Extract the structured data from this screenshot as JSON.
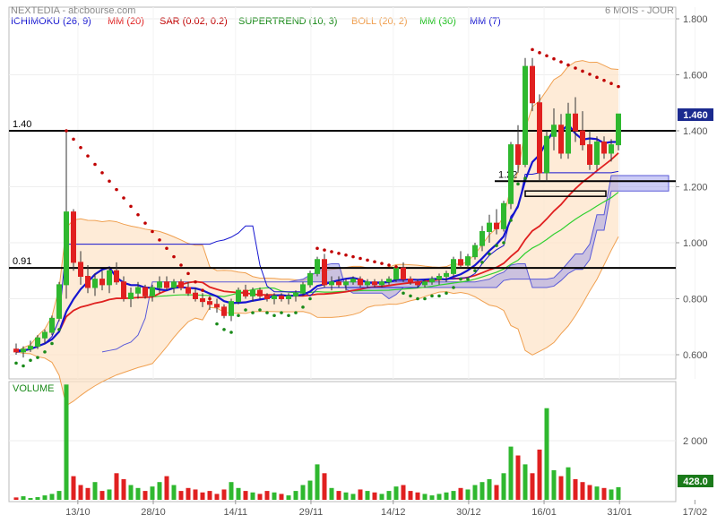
{
  "header": {
    "title": "NEXTEDIA - abcbourse.com",
    "period": "6 MOIS - JOUR"
  },
  "legend": [
    {
      "label": "ICHIMOKU (26, 9)",
      "color": "#1515d0"
    },
    {
      "label": "MM (20)",
      "color": "#e02020"
    },
    {
      "label": "SAR (0.02, 0.2)",
      "color": "#c00000"
    },
    {
      "label": "SUPERTREND (10, 3)",
      "color": "#1a8a1a"
    },
    {
      "label": "BOLL (20, 2)",
      "color": "#f0a050"
    },
    {
      "label": "MM (30)",
      "color": "#20c020"
    },
    {
      "label": "MM (7)",
      "color": "#1515d0"
    }
  ],
  "price_axis": {
    "ticks": [
      "1.800",
      "1.600",
      "1.400",
      "1.200",
      "1.000",
      "0.800",
      "0.600"
    ],
    "last_label": "1.460"
  },
  "volume_axis": {
    "ticks": [
      "2 000"
    ],
    "last_label": "428.0",
    "title": "VOLUME"
  },
  "x_axis": {
    "ticks": [
      "13/10",
      "28/10",
      "14/11",
      "29/11",
      "14/12",
      "30/12",
      "16/01",
      "31/01",
      "17/02"
    ]
  },
  "levels": [
    {
      "label": "1.40",
      "value": 1.4
    },
    {
      "label": "0.91",
      "value": 0.91
    },
    {
      "label": "1.22",
      "value": 1.22
    }
  ],
  "chart_data": {
    "type": "candlestick",
    "title": "NEXTEDIA",
    "ylim": [
      0.55,
      1.85
    ],
    "series_note": "daily OHLC, approximate",
    "candles": [
      [
        0.62,
        0.64,
        0.6,
        0.61
      ],
      [
        0.61,
        0.63,
        0.59,
        0.62
      ],
      [
        0.62,
        0.65,
        0.61,
        0.63
      ],
      [
        0.63,
        0.67,
        0.62,
        0.66
      ],
      [
        0.66,
        0.69,
        0.64,
        0.68
      ],
      [
        0.68,
        0.74,
        0.67,
        0.73
      ],
      [
        0.73,
        0.86,
        0.72,
        0.85
      ],
      [
        0.85,
        1.4,
        0.8,
        1.11
      ],
      [
        1.11,
        1.12,
        0.9,
        0.93
      ],
      [
        0.93,
        0.97,
        0.85,
        0.88
      ],
      [
        0.88,
        0.92,
        0.82,
        0.84
      ],
      [
        0.84,
        0.89,
        0.81,
        0.87
      ],
      [
        0.87,
        0.9,
        0.83,
        0.85
      ],
      [
        0.85,
        0.91,
        0.82,
        0.9
      ],
      [
        0.9,
        0.93,
        0.85,
        0.86
      ],
      [
        0.86,
        0.88,
        0.79,
        0.8
      ],
      [
        0.8,
        0.84,
        0.77,
        0.82
      ],
      [
        0.82,
        0.86,
        0.8,
        0.84
      ],
      [
        0.84,
        0.85,
        0.8,
        0.81
      ],
      [
        0.81,
        0.85,
        0.79,
        0.84
      ],
      [
        0.84,
        0.88,
        0.82,
        0.86
      ],
      [
        0.86,
        0.88,
        0.83,
        0.84
      ],
      [
        0.84,
        0.87,
        0.82,
        0.86
      ],
      [
        0.86,
        0.87,
        0.83,
        0.84
      ],
      [
        0.84,
        0.86,
        0.81,
        0.82
      ],
      [
        0.82,
        0.84,
        0.79,
        0.8
      ],
      [
        0.8,
        0.82,
        0.77,
        0.79
      ],
      [
        0.79,
        0.81,
        0.76,
        0.78
      ],
      [
        0.78,
        0.8,
        0.75,
        0.77
      ],
      [
        0.77,
        0.78,
        0.73,
        0.74
      ],
      [
        0.74,
        0.8,
        0.72,
        0.79
      ],
      [
        0.79,
        0.84,
        0.78,
        0.83
      ],
      [
        0.83,
        0.85,
        0.8,
        0.81
      ],
      [
        0.81,
        0.84,
        0.79,
        0.83
      ],
      [
        0.83,
        0.84,
        0.8,
        0.81
      ],
      [
        0.81,
        0.82,
        0.79,
        0.8
      ],
      [
        0.8,
        0.82,
        0.78,
        0.81
      ],
      [
        0.81,
        0.82,
        0.79,
        0.8
      ],
      [
        0.8,
        0.82,
        0.78,
        0.81
      ],
      [
        0.81,
        0.83,
        0.79,
        0.82
      ],
      [
        0.82,
        0.86,
        0.81,
        0.85
      ],
      [
        0.85,
        0.9,
        0.84,
        0.89
      ],
      [
        0.89,
        0.95,
        0.88,
        0.94
      ],
      [
        0.94,
        0.96,
        0.84,
        0.85
      ],
      [
        0.85,
        0.88,
        0.83,
        0.86
      ],
      [
        0.86,
        0.88,
        0.84,
        0.85
      ],
      [
        0.85,
        0.87,
        0.83,
        0.86
      ],
      [
        0.86,
        0.88,
        0.85,
        0.87
      ],
      [
        0.87,
        0.88,
        0.84,
        0.85
      ],
      [
        0.85,
        0.87,
        0.84,
        0.86
      ],
      [
        0.86,
        0.87,
        0.84,
        0.85
      ],
      [
        0.85,
        0.87,
        0.84,
        0.86
      ],
      [
        0.86,
        0.88,
        0.85,
        0.87
      ],
      [
        0.87,
        0.92,
        0.86,
        0.91
      ],
      [
        0.91,
        0.93,
        0.86,
        0.87
      ],
      [
        0.87,
        0.88,
        0.85,
        0.86
      ],
      [
        0.86,
        0.87,
        0.84,
        0.85
      ],
      [
        0.85,
        0.87,
        0.84,
        0.86
      ],
      [
        0.86,
        0.88,
        0.85,
        0.87
      ],
      [
        0.87,
        0.89,
        0.85,
        0.88
      ],
      [
        0.88,
        0.9,
        0.86,
        0.89
      ],
      [
        0.89,
        0.95,
        0.88,
        0.94
      ],
      [
        0.94,
        0.97,
        0.91,
        0.92
      ],
      [
        0.92,
        0.96,
        0.91,
        0.95
      ],
      [
        0.95,
        1.0,
        0.94,
        0.99
      ],
      [
        0.99,
        1.06,
        0.97,
        1.04
      ],
      [
        1.04,
        1.1,
        1.0,
        1.07
      ],
      [
        1.07,
        1.12,
        1.03,
        1.05
      ],
      [
        1.05,
        1.15,
        1.04,
        1.14
      ],
      [
        1.14,
        1.36,
        1.12,
        1.35
      ],
      [
        1.35,
        1.42,
        1.25,
        1.28
      ],
      [
        1.28,
        1.66,
        1.27,
        1.63
      ],
      [
        1.63,
        1.66,
        1.47,
        1.5
      ],
      [
        1.5,
        1.53,
        1.22,
        1.25
      ],
      [
        1.25,
        1.4,
        1.22,
        1.38
      ],
      [
        1.38,
        1.48,
        1.33,
        1.42
      ],
      [
        1.42,
        1.46,
        1.3,
        1.32
      ],
      [
        1.32,
        1.5,
        1.3,
        1.46
      ],
      [
        1.46,
        1.52,
        1.36,
        1.4
      ],
      [
        1.4,
        1.47,
        1.33,
        1.35
      ],
      [
        1.35,
        1.4,
        1.26,
        1.28
      ],
      [
        1.28,
        1.38,
        1.26,
        1.36
      ],
      [
        1.36,
        1.38,
        1.3,
        1.32
      ],
      [
        1.32,
        1.37,
        1.29,
        1.35
      ],
      [
        1.35,
        1.46,
        1.33,
        1.46
      ]
    ],
    "volume": [
      80,
      120,
      60,
      90,
      150,
      200,
      300,
      3900,
      800,
      500,
      400,
      600,
      300,
      350,
      900,
      700,
      500,
      400,
      300,
      450,
      600,
      800,
      500,
      300,
      400,
      350,
      250,
      300,
      200,
      350,
      600,
      400,
      300,
      250,
      200,
      300,
      250,
      200,
      150,
      300,
      500,
      650,
      1200,
      900,
      400,
      300,
      250,
      200,
      350,
      300,
      250,
      200,
      300,
      450,
      500,
      300,
      250,
      200,
      150,
      200,
      250,
      300,
      400,
      350,
      500,
      600,
      700,
      500,
      900,
      1800,
      1500,
      1200,
      900,
      1700,
      3100,
      1000,
      800,
      1100,
      700,
      600,
      500,
      450,
      400,
      350,
      428
    ]
  }
}
